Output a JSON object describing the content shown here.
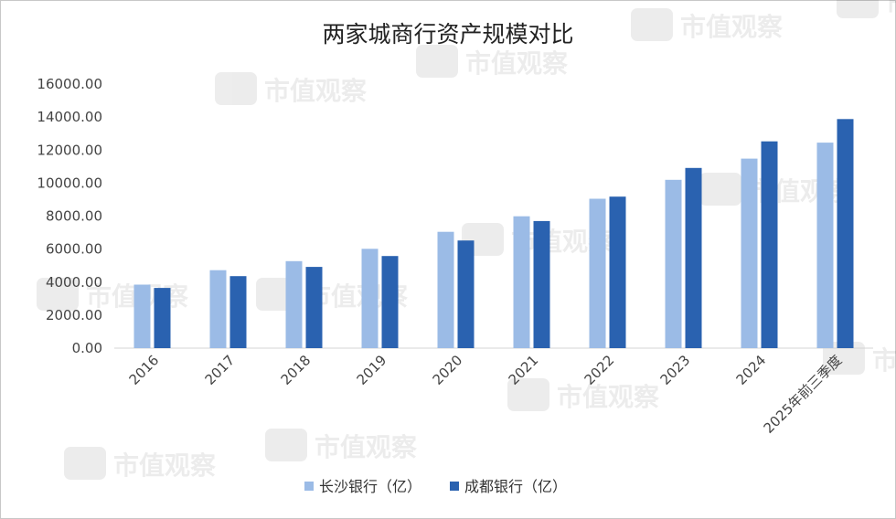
{
  "chart_data": {
    "type": "bar",
    "title": "两家城商行资产规模对比",
    "categories": [
      "2016",
      "2017",
      "2018",
      "2019",
      "2020",
      "2021",
      "2022",
      "2023",
      "2024",
      "2025年前三季度"
    ],
    "series": [
      {
        "name": "长沙银行（亿）",
        "color": "#9bbbe6",
        "values": [
          3850,
          4720,
          5270,
          6020,
          7050,
          7990,
          9050,
          10200,
          11480,
          12450
        ]
      },
      {
        "name": "成都银行（亿）",
        "color": "#2a62b0",
        "values": [
          3650,
          4360,
          4920,
          5580,
          6520,
          7700,
          9180,
          10920,
          12530,
          13880
        ]
      }
    ],
    "ylim": [
      0,
      16000
    ],
    "yticks": [
      "0.00",
      "2000.00",
      "4000.00",
      "6000.00",
      "8000.00",
      "10000.00",
      "12000.00",
      "14000.00",
      "16000.00"
    ],
    "grid": false,
    "legend": "bottom",
    "xlabel": "",
    "ylabel": ""
  },
  "watermark": {
    "text": "市值观察"
  }
}
